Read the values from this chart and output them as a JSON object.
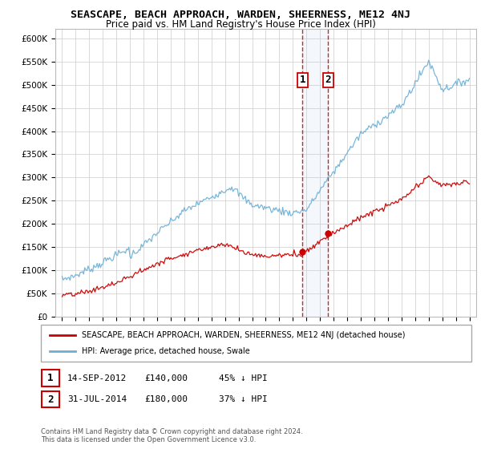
{
  "title": "SEASCAPE, BEACH APPROACH, WARDEN, SHEERNESS, ME12 4NJ",
  "subtitle": "Price paid vs. HM Land Registry's House Price Index (HPI)",
  "legend_entry1": "SEASCAPE, BEACH APPROACH, WARDEN, SHEERNESS, ME12 4NJ (detached house)",
  "legend_entry2": "HPI: Average price, detached house, Swale",
  "transaction1_label": "1",
  "transaction1_date": "14-SEP-2012",
  "transaction1_price": "£140,000",
  "transaction1_hpi": "45% ↓ HPI",
  "transaction1_year": 2012.71,
  "transaction1_value": 140000,
  "transaction2_label": "2",
  "transaction2_date": "31-JUL-2014",
  "transaction2_price": "£180,000",
  "transaction2_hpi": "37% ↓ HPI",
  "transaction2_year": 2014.583,
  "transaction2_value": 180000,
  "footer1": "Contains HM Land Registry data © Crown copyright and database right 2024.",
  "footer2": "This data is licensed under the Open Government Licence v3.0.",
  "hpi_color": "#6baed6",
  "price_color": "#cc0000",
  "vline_color": "#cc0000",
  "background_color": "#ffffff",
  "grid_color": "#cccccc",
  "xlim_left": 1994.5,
  "xlim_right": 2025.5,
  "ylim_bottom": 0,
  "ylim_top": 620000,
  "ytick_values": [
    0,
    50000,
    100000,
    150000,
    200000,
    250000,
    300000,
    350000,
    400000,
    450000,
    500000,
    550000,
    600000
  ],
  "xtick_values": [
    1995,
    1996,
    1997,
    1998,
    1999,
    2000,
    2001,
    2002,
    2003,
    2004,
    2005,
    2006,
    2007,
    2008,
    2009,
    2010,
    2011,
    2012,
    2013,
    2014,
    2015,
    2016,
    2017,
    2018,
    2019,
    2020,
    2021,
    2022,
    2023,
    2024,
    2025
  ]
}
